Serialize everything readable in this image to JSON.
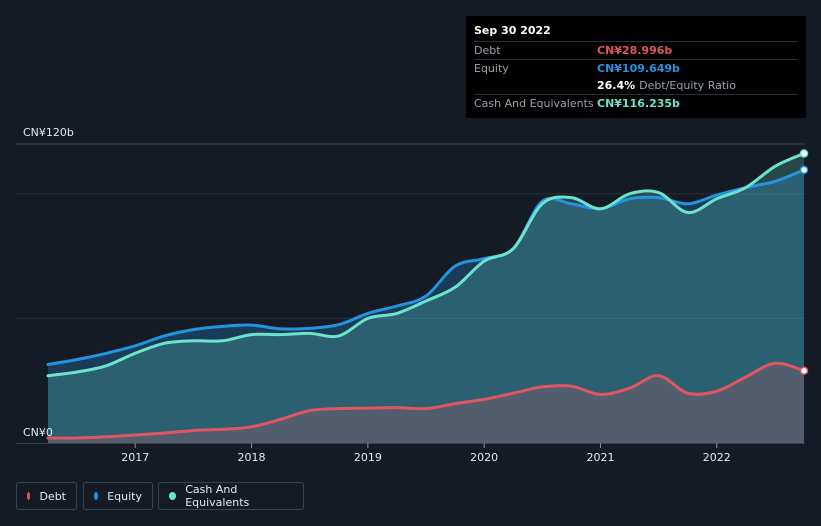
{
  "tooltip": {
    "date": "Sep 30 2022",
    "debt_label": "Debt",
    "debt_value": "CN¥28.996b",
    "equity_label": "Equity",
    "equity_value": "CN¥109.649b",
    "ratio_value": "26.4%",
    "ratio_label": "Debt/Equity Ratio",
    "cash_label": "Cash And Equivalents",
    "cash_value": "CN¥116.235b"
  },
  "legend": {
    "debt": "Debt",
    "equity": "Equity",
    "cash": "Cash And Equivalents"
  },
  "colors": {
    "debt": "#e05561",
    "equity": "#2394df",
    "cash": "#6de3cc",
    "background": "#151b25"
  },
  "chart_data": {
    "type": "area",
    "ylabel_top": "CN¥120b",
    "ylabel_bottom": "CN¥0",
    "ylim": [
      0,
      120
    ],
    "xlim": [
      2016.25,
      2022.75
    ],
    "x_ticks": [
      "2017",
      "2018",
      "2019",
      "2020",
      "2021",
      "2022"
    ],
    "x_tick_values": [
      2017,
      2018,
      2019,
      2020,
      2021,
      2022
    ],
    "grid": true,
    "legend_position": "bottom-left",
    "x": [
      2016.25,
      2016.5,
      2016.75,
      2017.0,
      2017.25,
      2017.5,
      2017.75,
      2018.0,
      2018.25,
      2018.5,
      2018.75,
      2019.0,
      2019.25,
      2019.5,
      2019.75,
      2020.0,
      2020.25,
      2020.5,
      2020.75,
      2021.0,
      2021.25,
      2021.5,
      2021.75,
      2022.0,
      2022.25,
      2022.5,
      2022.75
    ],
    "series": [
      {
        "name": "Debt",
        "values": [
          2.0,
          2.0,
          2.5,
          3.2,
          4.0,
          5.0,
          5.5,
          6.5,
          9.5,
          13.0,
          13.8,
          14.0,
          14.2,
          13.8,
          15.8,
          17.5,
          20.0,
          22.5,
          22.8,
          19.5,
          22.0,
          27.0,
          20.0,
          20.8,
          26.5,
          32.0,
          29.0
        ]
      },
      {
        "name": "Equity",
        "values": [
          31.5,
          33.5,
          36.0,
          39.0,
          43.0,
          45.5,
          46.8,
          47.3,
          45.8,
          46.0,
          47.5,
          52.0,
          55.0,
          59.0,
          71.0,
          74.0,
          78.0,
          97.0,
          96.0,
          94.0,
          98.0,
          98.5,
          96.0,
          99.5,
          102.5,
          105.0,
          109.6
        ]
      },
      {
        "name": "Cash And Equivalents",
        "values": [
          27.0,
          28.5,
          31.0,
          36.0,
          40.0,
          41.0,
          41.0,
          43.5,
          43.5,
          44.0,
          43.0,
          50.0,
          52.0,
          57.0,
          62.5,
          73.0,
          78.0,
          96.0,
          98.5,
          94.0,
          100.0,
          100.5,
          92.5,
          98.0,
          102.5,
          111.0,
          116.2
        ]
      }
    ]
  }
}
